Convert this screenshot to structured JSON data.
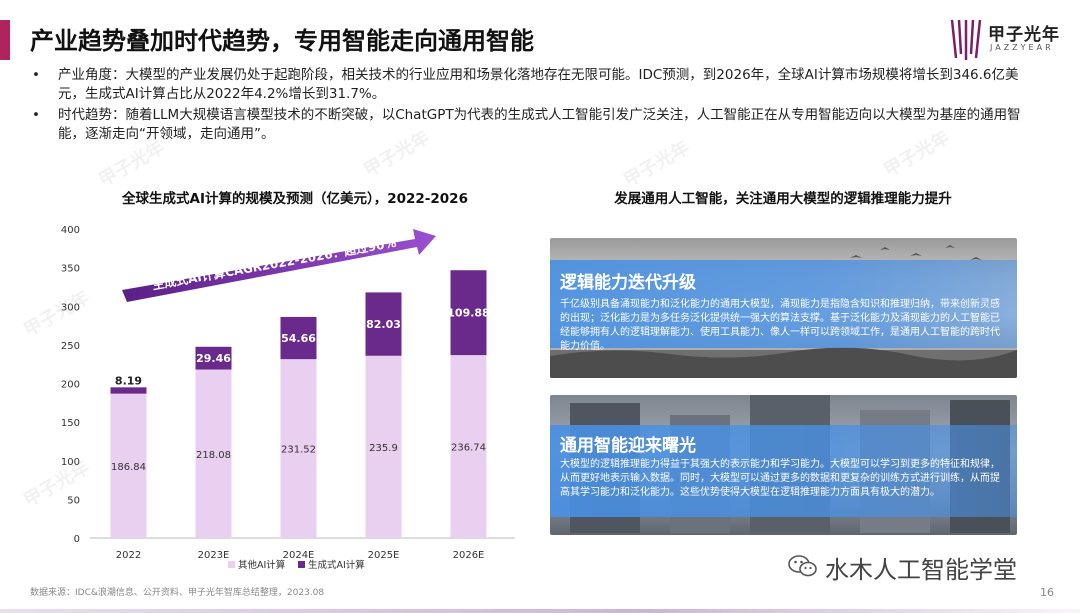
{
  "header": {
    "title": "产业趋势叠加时代趋势，专用智能走向通用智能",
    "logo_text": "甲子光年",
    "logo_sub": "JAZZYEAR"
  },
  "bullets": [
    "产业角度：大模型的产业发展仍处于起跑阶段，相关技术的行业应用和场景化落地存在无限可能。IDC预测，到2026年，全球AI计算市场规模将增长到346.6亿美元，生成式AI计算占比从2022年4.2%增长到31.7%。",
    "时代趋势：随着LLM大规模语言模型技术的不断突破，以ChatGPT为代表的生成式人工智能引发广泛关注，人工智能正在从专用智能迈向以大模型为基座的通用智能，逐渐走向“开领域，走向通用”。"
  ],
  "chart_title": "全球生成式AI计算的规模及预测（亿美元），2022-2026",
  "chart_data": {
    "type": "bar",
    "stacked": true,
    "categories": [
      "2022",
      "2023E",
      "2024E",
      "2025E",
      "2026E"
    ],
    "series": [
      {
        "name": "其他AI计算",
        "values": [
          186.84,
          218.08,
          231.52,
          235.9,
          236.74
        ],
        "color": "#e9cff0"
      },
      {
        "name": "生成式AI计算",
        "values": [
          8.19,
          29.46,
          54.66,
          82.03,
          109.88
        ],
        "color": "#6a2a8c"
      }
    ],
    "ylim": [
      0,
      400
    ],
    "yticks": [
      0,
      50,
      100,
      150,
      200,
      250,
      300,
      350,
      400
    ],
    "legend": "bottom",
    "annotation": "生成式AI计算CAGR2022-2026：超过90%"
  },
  "right_title": "发展通用人工智能，关注通用大模型的逻辑推理能力提升",
  "cards": [
    {
      "heading": "逻辑能力迭代升级",
      "body": "千亿级别具备涌现能力和泛化能力的通用大模型，涌现能力是指隐含知识和推理归纳，带来创新灵感的出现；泛化能力是为多任务泛化提供统一强大的算法支撑。基于泛化能力及涌现能力的人工智能已经能够拥有人的逻辑理解能力、使用工具能力、像人一样可以跨领域工作，是通用人工智能的跨时代能力价值。"
    },
    {
      "heading": "通用智能迎来曙光",
      "body": "大模型的逻辑推理能力得益于其强大的表示能力和学习能力。大模型可以学习到更多的特征和规律，从而更好地表示输入数据。同时，大模型可以通过更多的数据和更复杂的训练方式进行训练，从而提高其学习能力和泛化能力。这些优势使得大模型在逻辑推理能力方面具有极大的潜力。"
    }
  ],
  "footer": {
    "source": "数据来源：IDC&浪潮信息、公开资料、甲子光年智库总结整理，2023.08",
    "page": "16",
    "wechat": "水木人工智能学堂"
  },
  "colors": {
    "accent": "#b0245e",
    "purple_dark": "#6a2a8c",
    "purple_light": "#e9cff0",
    "card_blue": "#4a90e2"
  }
}
